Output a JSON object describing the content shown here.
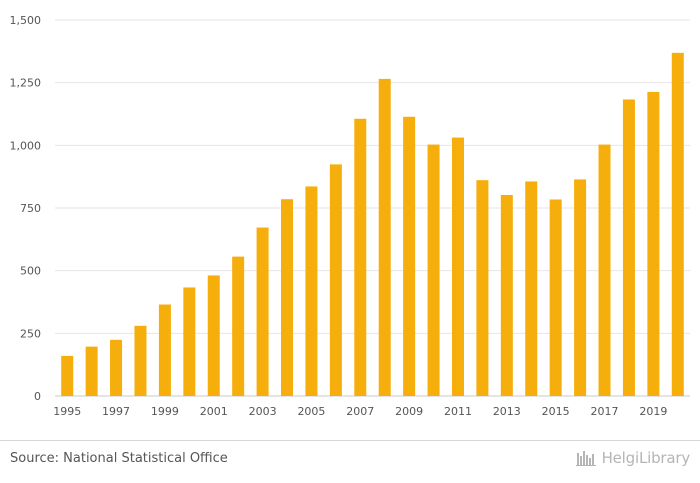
{
  "chart_data": {
    "type": "bar",
    "categories": [
      "1995",
      "1996",
      "1997",
      "1998",
      "1999",
      "2000",
      "2001",
      "2002",
      "2003",
      "2004",
      "2005",
      "2006",
      "2007",
      "2008",
      "2009",
      "2010",
      "2011",
      "2012",
      "2013",
      "2014",
      "2015",
      "2016",
      "2017",
      "2018",
      "2019",
      "2020"
    ],
    "values": [
      160,
      197,
      224,
      280,
      365,
      433,
      481,
      556,
      672,
      785,
      836,
      924,
      1106,
      1265,
      1114,
      1003,
      1031,
      861,
      802,
      856,
      784,
      864,
      1003,
      1183,
      1213,
      1369
    ],
    "tick_labels_x": [
      "1995",
      "1997",
      "1999",
      "2001",
      "2003",
      "2005",
      "2007",
      "2009",
      "2011",
      "2013",
      "2015",
      "2017",
      "2019"
    ],
    "y_ticks": [
      0,
      250,
      500,
      750,
      1000,
      1250,
      1500
    ],
    "y_tick_labels": [
      "0",
      "250",
      "500",
      "750",
      "1,000",
      "1,250",
      "1,500"
    ],
    "ylim": [
      0,
      1500
    ],
    "title": "",
    "xlabel": "",
    "ylabel": "",
    "grid": true,
    "legend": "none",
    "bar_color": "#f5ae0b"
  },
  "footer": {
    "source": "Source: National Statistical Office",
    "brand": "HelgiLibrary",
    "brand_color": "#b5b5b5"
  }
}
